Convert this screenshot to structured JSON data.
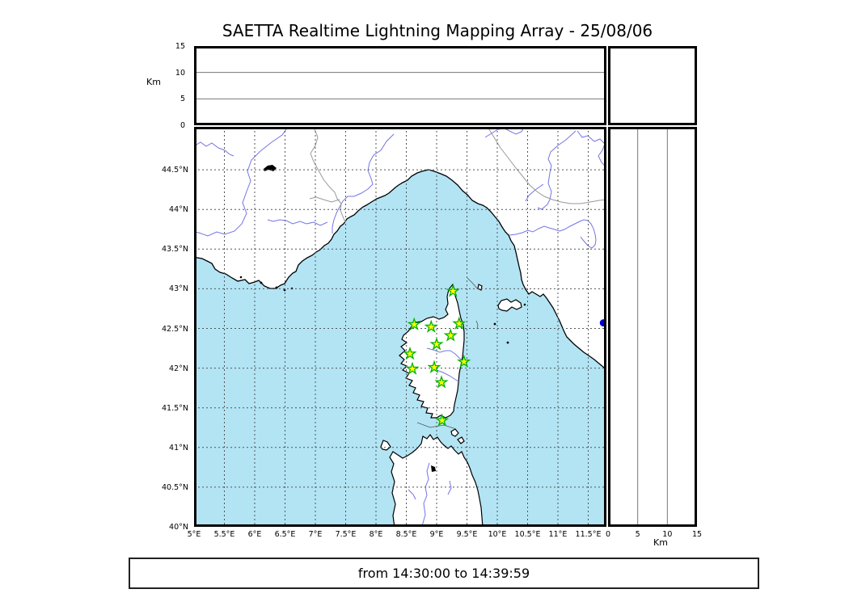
{
  "title": "SAETTA Realtime Lightning Mapping Array - 25/08/06",
  "time_range": "from 14:30:00 to 14:39:59",
  "altitude_axis": {
    "unit": "Km",
    "ticks": [
      0,
      5,
      10,
      15
    ],
    "max": 15
  },
  "map_axes": {
    "lon_ticks": [
      {
        "v": 5,
        "label": "5°E"
      },
      {
        "v": 5.5,
        "label": "5.5°E"
      },
      {
        "v": 6,
        "label": "6°E"
      },
      {
        "v": 6.5,
        "label": "6.5°E"
      },
      {
        "v": 7,
        "label": "7°E"
      },
      {
        "v": 7.5,
        "label": "7.5°E"
      },
      {
        "v": 8,
        "label": "8°E"
      },
      {
        "v": 8.5,
        "label": "8.5°E"
      },
      {
        "v": 9,
        "label": "9°E"
      },
      {
        "v": 9.5,
        "label": "9.5°E"
      },
      {
        "v": 10,
        "label": "10°E"
      },
      {
        "v": 10.5,
        "label": "10.5°E"
      },
      {
        "v": 11,
        "label": "11°E"
      },
      {
        "v": 11.5,
        "label": "11.5°E"
      }
    ],
    "lat_ticks": [
      {
        "v": 40,
        "label": "40°N"
      },
      {
        "v": 40.5,
        "label": "40.5°N"
      },
      {
        "v": 41,
        "label": "41°N"
      },
      {
        "v": 41.5,
        "label": "41.5°N"
      },
      {
        "v": 42,
        "label": "42°N"
      },
      {
        "v": 42.5,
        "label": "42.5°N"
      },
      {
        "v": 43,
        "label": "43°N"
      },
      {
        "v": 43.5,
        "label": "43.5°N"
      },
      {
        "v": 44,
        "label": "44°N"
      },
      {
        "v": 44.5,
        "label": "44.5°N"
      }
    ]
  },
  "colors": {
    "sea": "#b2e4f4",
    "land": "#ffffff",
    "coast": "#000000",
    "river": "#7474e6",
    "admin_border": "#999999",
    "cable": "#555555",
    "grid": "#555555",
    "station_fill": "#ffff00",
    "station_stroke": "#00b400",
    "source_dot": "#0000dd"
  },
  "chart_data": {
    "type": "scatter",
    "title": "SAETTA Realtime Lightning Mapping Array - 25/08/06",
    "time_window": "from 14:30:00 to 14:39:59",
    "panels": [
      "altitude vs longitude (top, 0-15 Km)",
      "longitude vs latitude map (main)",
      "altitude vs latitude (right, 0-15 Km)"
    ],
    "lon_range_deg_E": [
      5,
      11.8
    ],
    "lat_range_deg_N": [
      40,
      45.05
    ],
    "altitude_range_km": [
      0,
      15
    ],
    "grid_step_deg": 0.5,
    "stations": [
      {
        "lon": 9.27,
        "lat": 42.97
      },
      {
        "lon": 8.63,
        "lat": 42.55
      },
      {
        "lon": 8.91,
        "lat": 42.52
      },
      {
        "lon": 9.37,
        "lat": 42.56
      },
      {
        "lon": 9.23,
        "lat": 42.41
      },
      {
        "lon": 9.0,
        "lat": 42.3
      },
      {
        "lon": 8.56,
        "lat": 42.18
      },
      {
        "lon": 9.45,
        "lat": 42.08
      },
      {
        "lon": 8.6,
        "lat": 41.99
      },
      {
        "lon": 8.96,
        "lat": 42.01
      },
      {
        "lon": 9.08,
        "lat": 41.82
      },
      {
        "lon": 9.09,
        "lat": 41.34
      }
    ],
    "sources": [
      {
        "lon": 11.75,
        "lat": 42.57
      }
    ]
  }
}
